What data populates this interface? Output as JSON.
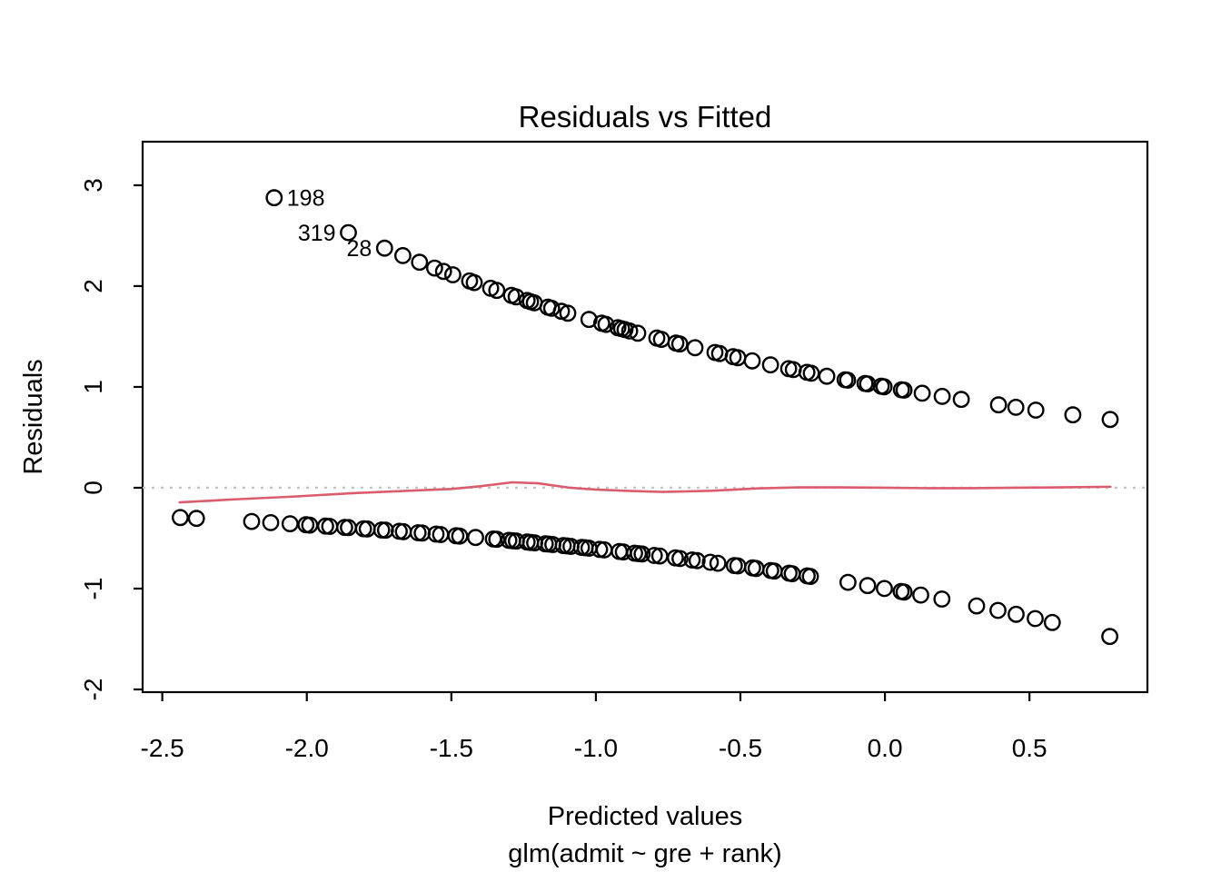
{
  "figure": {
    "kind": "R base-graphics diagnostic plot"
  },
  "colors": {
    "smoother_line": "#dc5c6f",
    "zero_line": "#c4c4c4",
    "points": "#000000",
    "axis": "#000000",
    "background": "#ffffff"
  },
  "chart_data": {
    "type": "scatter",
    "title": "Residuals vs Fitted",
    "xlabel": "Predicted values",
    "xlabel_sub": "glm(admit ~ gre + rank)",
    "ylabel": "Residuals",
    "xlim": [
      -2.568,
      0.908
    ],
    "ylim": [
      -2.027,
      3.432
    ],
    "grid": false,
    "legend": null,
    "xticks": [
      -2.5,
      -2.0,
      -1.5,
      -1.0,
      -0.5,
      0.0,
      0.5
    ],
    "xtick_labels": [
      "-2.5",
      "-2.0",
      "-1.5",
      "-1.0",
      "-0.5",
      "0.0",
      "0.5"
    ],
    "yticks": [
      -2,
      -1,
      0,
      1,
      2,
      3
    ],
    "ytick_labels": [
      "-2",
      "-1",
      "0",
      "1",
      "2",
      "3"
    ],
    "zero_line": {
      "y": 0,
      "style": "dotted"
    },
    "series": [
      {
        "name": "positive-residuals",
        "marker": "open-circle",
        "points": [
          [
            -2.113,
            2.876
          ],
          [
            -1.856,
            2.53
          ],
          [
            -1.731,
            2.376
          ],
          [
            -1.668,
            2.302
          ],
          [
            -1.61,
            2.237
          ],
          [
            -1.558,
            2.179
          ],
          [
            -1.527,
            2.146
          ],
          [
            -1.495,
            2.112
          ],
          [
            -1.437,
            2.051
          ],
          [
            -1.421,
            2.035
          ],
          [
            -1.364,
            1.978
          ],
          [
            -1.343,
            1.957
          ],
          [
            -1.292,
            1.908
          ],
          [
            -1.276,
            1.893
          ],
          [
            -1.238,
            1.857
          ],
          [
            -1.226,
            1.846
          ],
          [
            -1.213,
            1.834
          ],
          [
            -1.166,
            1.791
          ],
          [
            -1.153,
            1.78
          ],
          [
            -1.119,
            1.75
          ],
          [
            -1.097,
            1.731
          ],
          [
            -1.024,
            1.669
          ],
          [
            -0.98,
            1.632
          ],
          [
            -0.965,
            1.62
          ],
          [
            -0.924,
            1.587
          ],
          [
            -0.911,
            1.577
          ],
          [
            -0.899,
            1.568
          ],
          [
            -0.883,
            1.555
          ],
          [
            -0.855,
            1.533
          ],
          [
            -0.789,
            1.484
          ],
          [
            -0.773,
            1.472
          ],
          [
            -0.723,
            1.435
          ],
          [
            -0.71,
            1.426
          ],
          [
            -0.657,
            1.389
          ],
          [
            -0.588,
            1.342
          ],
          [
            -0.572,
            1.331
          ],
          [
            -0.525,
            1.3
          ],
          [
            -0.509,
            1.29
          ],
          [
            -0.459,
            1.258
          ],
          [
            -0.396,
            1.219
          ],
          [
            -0.333,
            1.181
          ],
          [
            -0.317,
            1.172
          ],
          [
            -0.27,
            1.145
          ],
          [
            -0.255,
            1.136
          ],
          [
            -0.201,
            1.106
          ],
          [
            -0.138,
            1.071
          ],
          [
            -0.129,
            1.067
          ],
          [
            -0.069,
            1.035
          ],
          [
            -0.06,
            1.03
          ],
          [
            -0.013,
            1.007
          ],
          [
            -0.003,
            1.002
          ],
          [
            0.057,
            0.972
          ],
          [
            0.066,
            0.968
          ],
          [
            0.129,
            0.938
          ],
          [
            0.198,
            0.906
          ],
          [
            0.264,
            0.876
          ],
          [
            0.393,
            0.822
          ],
          [
            0.453,
            0.798
          ],
          [
            0.522,
            0.77
          ],
          [
            0.65,
            0.723
          ],
          [
            0.779,
            0.677
          ]
        ]
      },
      {
        "name": "negative-residuals",
        "marker": "open-circle",
        "points": [
          [
            -2.438,
            -0.296
          ],
          [
            -2.382,
            -0.304
          ],
          [
            -2.191,
            -0.334
          ],
          [
            -2.125,
            -0.346
          ],
          [
            -2.058,
            -0.357
          ],
          [
            -2.003,
            -0.367
          ],
          [
            -1.99,
            -0.37
          ],
          [
            -1.935,
            -0.38
          ],
          [
            -1.921,
            -0.383
          ],
          [
            -1.869,
            -0.393
          ],
          [
            -1.856,
            -0.395
          ],
          [
            -1.804,
            -0.406
          ],
          [
            -1.791,
            -0.408
          ],
          [
            -1.741,
            -0.419
          ],
          [
            -1.728,
            -0.421
          ],
          [
            -1.68,
            -0.432
          ],
          [
            -1.666,
            -0.435
          ],
          [
            -1.615,
            -0.446
          ],
          [
            -1.601,
            -0.449
          ],
          [
            -1.553,
            -0.46
          ],
          [
            -1.537,
            -0.464
          ],
          [
            -1.484,
            -0.476
          ],
          [
            -1.471,
            -0.479
          ],
          [
            -1.416,
            -0.493
          ],
          [
            -1.355,
            -0.508
          ],
          [
            -1.343,
            -0.511
          ],
          [
            -1.301,
            -0.522
          ],
          [
            -1.288,
            -0.525
          ],
          [
            -1.275,
            -0.529
          ],
          [
            -1.238,
            -0.538
          ],
          [
            -1.226,
            -0.542
          ],
          [
            -1.212,
            -0.546
          ],
          [
            -1.175,
            -0.556
          ],
          [
            -1.163,
            -0.559
          ],
          [
            -1.149,
            -0.563
          ],
          [
            -1.113,
            -0.573
          ],
          [
            -1.1,
            -0.577
          ],
          [
            -1.086,
            -0.581
          ],
          [
            -1.05,
            -0.592
          ],
          [
            -1.037,
            -0.595
          ],
          [
            -1.024,
            -0.599
          ],
          [
            -0.987,
            -0.611
          ],
          [
            -0.971,
            -0.615
          ],
          [
            -0.919,
            -0.632
          ],
          [
            -0.905,
            -0.636
          ],
          [
            -0.866,
            -0.649
          ],
          [
            -0.853,
            -0.653
          ],
          [
            -0.84,
            -0.657
          ],
          [
            -0.798,
            -0.671
          ],
          [
            -0.779,
            -0.677
          ],
          [
            -0.725,
            -0.696
          ],
          [
            -0.709,
            -0.702
          ],
          [
            -0.667,
            -0.716
          ],
          [
            -0.65,
            -0.723
          ],
          [
            -0.604,
            -0.739
          ],
          [
            -0.578,
            -0.749
          ],
          [
            -0.521,
            -0.771
          ],
          [
            -0.509,
            -0.775
          ],
          [
            -0.458,
            -0.795
          ],
          [
            -0.446,
            -0.8
          ],
          [
            -0.395,
            -0.821
          ],
          [
            -0.383,
            -0.826
          ],
          [
            -0.332,
            -0.847
          ],
          [
            -0.321,
            -0.852
          ],
          [
            -0.269,
            -0.874
          ],
          [
            -0.258,
            -0.879
          ],
          [
            -0.128,
            -0.938
          ],
          [
            -0.06,
            -0.97
          ],
          [
            -0.002,
            -0.999
          ],
          [
            0.056,
            -1.028
          ],
          [
            0.066,
            -1.034
          ],
          [
            0.124,
            -1.064
          ],
          [
            0.197,
            -1.104
          ],
          [
            0.317,
            -1.172
          ],
          [
            0.391,
            -1.216
          ],
          [
            0.454,
            -1.255
          ],
          [
            0.52,
            -1.297
          ],
          [
            0.579,
            -1.336
          ],
          [
            0.778,
            -1.475
          ]
        ]
      }
    ],
    "smoother": {
      "name": "lowess-smoother",
      "points": [
        [
          -2.44,
          -0.145
        ],
        [
          -2.25,
          -0.115
        ],
        [
          -2.05,
          -0.088
        ],
        [
          -1.85,
          -0.055
        ],
        [
          -1.65,
          -0.03
        ],
        [
          -1.5,
          -0.012
        ],
        [
          -1.4,
          0.015
        ],
        [
          -1.29,
          0.054
        ],
        [
          -1.2,
          0.044
        ],
        [
          -1.09,
          0.0
        ],
        [
          -1.0,
          -0.018
        ],
        [
          -0.9,
          -0.03
        ],
        [
          -0.77,
          -0.041
        ],
        [
          -0.6,
          -0.03
        ],
        [
          -0.44,
          -0.006
        ],
        [
          -0.3,
          0.004
        ],
        [
          -0.15,
          0.004
        ],
        [
          0.0,
          0.0
        ],
        [
          0.15,
          -0.004
        ],
        [
          0.3,
          -0.004
        ],
        [
          0.45,
          0.0
        ],
        [
          0.6,
          0.004
        ],
        [
          0.78,
          0.01
        ]
      ]
    },
    "labeled_points": [
      {
        "label": "198",
        "x": -2.113,
        "y": 2.876,
        "side": "right"
      },
      {
        "label": "319",
        "x": -1.856,
        "y": 2.53,
        "side": "left"
      },
      {
        "label": "28",
        "x": -1.731,
        "y": 2.376,
        "side": "left"
      }
    ]
  }
}
